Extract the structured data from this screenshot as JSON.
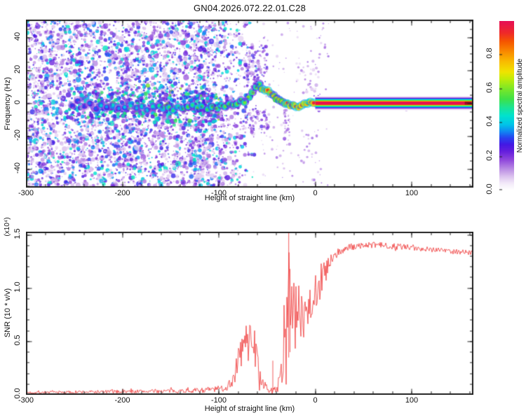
{
  "figure": {
    "title": "GN04.2026.072.22.01.C28",
    "bg": "#ffffff"
  },
  "chart_data": [
    {
      "type": "heatmap",
      "title": "GN04.2026.072.22.01.C28",
      "xlabel": "Height of straight line (km)",
      "ylabel": "Frequency (Hz)",
      "xlim": [
        -300,
        164
      ],
      "ylim": [
        -51,
        51
      ],
      "x_major_ticks": [
        -300,
        -200,
        -100,
        0,
        100
      ],
      "x_tick_labels": [
        "-300",
        "-200",
        "-100",
        "0",
        "100"
      ],
      "x_minor_step": 20,
      "y_major_ticks": [
        -40,
        -20,
        0,
        20,
        40
      ],
      "y_tick_labels": [
        "-40",
        "-20",
        "0",
        "20",
        "40"
      ],
      "y_minor_step": 5,
      "grid": false,
      "colorbar": {
        "label": "Normalized spectral amplitude",
        "ticks": [
          0.0,
          0.2,
          0.4,
          0.6,
          0.8
        ],
        "tick_labels": [
          "0.0",
          "0.2",
          "0.4",
          "0.6",
          "0.8"
        ],
        "range": [
          0,
          1
        ]
      },
      "colormap_stops": [
        [
          0.0,
          "#ffffff"
        ],
        [
          0.04,
          "#f3eaf9"
        ],
        [
          0.08,
          "#dcc3ef"
        ],
        [
          0.13,
          "#b686e3"
        ],
        [
          0.18,
          "#8f46dc"
        ],
        [
          0.23,
          "#641edd"
        ],
        [
          0.27,
          "#4318e4"
        ],
        [
          0.31,
          "#2744f0"
        ],
        [
          0.35,
          "#0f8df2"
        ],
        [
          0.39,
          "#00c6e8"
        ],
        [
          0.44,
          "#00e2cf"
        ],
        [
          0.49,
          "#1ce493"
        ],
        [
          0.54,
          "#3fe146"
        ],
        [
          0.6,
          "#7ce728"
        ],
        [
          0.66,
          "#c2ec08"
        ],
        [
          0.7,
          "#f0e400"
        ],
        [
          0.76,
          "#f9bc00"
        ],
        [
          0.82,
          "#f98a00"
        ],
        [
          0.88,
          "#f55600"
        ],
        [
          0.93,
          "#ef2a28"
        ],
        [
          1.0,
          "#e60f55"
        ]
      ],
      "noise": {
        "x0_km": -300,
        "fade_start_km": -125,
        "fade_end_km": -58,
        "n_dense": 3200,
        "n_small": 1700,
        "sparse": {
          "x0": -58,
          "x1": 14,
          "n": 150
        },
        "a_min": 0.06,
        "a_max": 0.46
      },
      "band_concentration": {
        "x0": -255,
        "x1": -100,
        "n": 520,
        "center_hz": -1,
        "f_sigma_hz": 8,
        "a_min": 0.15,
        "a_max": 0.55
      },
      "trace": [
        [
          -252,
          -1,
          0.3
        ],
        [
          -246,
          2,
          0.32
        ],
        [
          -240,
          -2,
          0.3
        ],
        [
          -234,
          0,
          0.34
        ],
        [
          -228,
          -3,
          0.32
        ],
        [
          -222,
          -1,
          0.42
        ],
        [
          -216,
          -2,
          0.36
        ],
        [
          -210,
          -1,
          0.45
        ],
        [
          -204,
          -3,
          0.36
        ],
        [
          -198,
          -2,
          0.4
        ],
        [
          -192,
          -1,
          0.46
        ],
        [
          -186,
          -3,
          0.42
        ],
        [
          -180,
          -2,
          0.44
        ],
        [
          -174,
          -4,
          0.42
        ],
        [
          -168,
          -2,
          0.46
        ],
        [
          -162,
          -1,
          0.5
        ],
        [
          -157,
          -3,
          0.48
        ],
        [
          -152,
          -2,
          0.52
        ],
        [
          -147,
          -4,
          0.5
        ],
        [
          -142,
          -2,
          0.48
        ],
        [
          -137,
          -3,
          0.52
        ],
        [
          -132,
          -2,
          0.55
        ],
        [
          -127,
          -1,
          0.5
        ],
        [
          -122,
          -3,
          0.55
        ],
        [
          -117,
          -2,
          0.52
        ],
        [
          -112,
          -4,
          0.52
        ],
        [
          -107,
          -2,
          0.56
        ],
        [
          -102,
          -3,
          0.58
        ],
        [
          -97,
          -1,
          0.55
        ],
        [
          -93,
          -2,
          0.58
        ],
        [
          -89,
          0,
          0.55
        ],
        [
          -85,
          -1,
          0.6
        ],
        [
          -81,
          0,
          0.58
        ],
        [
          -77,
          2,
          0.56
        ],
        [
          -73,
          1,
          0.6
        ],
        [
          -69,
          4,
          0.6
        ],
        [
          -65,
          7,
          0.62
        ],
        [
          -61,
          10,
          0.6
        ],
        [
          -58,
          12,
          0.58
        ],
        [
          -55,
          9,
          0.8
        ],
        [
          -52,
          8,
          0.95
        ],
        [
          -49,
          8,
          0.92
        ],
        [
          -46,
          6,
          0.8
        ],
        [
          -43,
          5,
          0.72
        ],
        [
          -40,
          3,
          0.7
        ],
        [
          -37,
          2,
          0.74
        ],
        [
          -34,
          1,
          0.7
        ],
        [
          -31,
          0,
          0.8
        ],
        [
          -29,
          0,
          0.95
        ],
        [
          -26,
          -1,
          0.9
        ],
        [
          -23,
          -1,
          0.78
        ],
        [
          -20,
          -2,
          0.92
        ],
        [
          -17,
          -2,
          0.95
        ],
        [
          -14,
          -1,
          0.9
        ],
        [
          -11,
          0,
          0.85
        ],
        [
          -8,
          0,
          0.95
        ],
        [
          -5,
          1,
          0.92
        ],
        [
          -2,
          0.5,
          0.96
        ]
      ],
      "plumes": [
        {
          "x0": -72,
          "x1": -50,
          "f0": 10,
          "f1": 36,
          "n": 95,
          "a0": 0.08,
          "a1": 0.3
        },
        {
          "x0": -75,
          "x1": -48,
          "f0": -18,
          "f1": -3,
          "n": 70,
          "a0": 0.08,
          "a1": 0.28
        },
        {
          "x0": -33,
          "x1": -26,
          "f0": -26,
          "f1": -4,
          "n": 30,
          "a0": 0.06,
          "a1": 0.2
        },
        {
          "x0": -20,
          "x1": 4,
          "f0": 5,
          "f1": 26,
          "n": 25,
          "a0": 0.05,
          "a1": 0.16
        },
        {
          "x0": -2,
          "x1": 8,
          "f0": -5,
          "f1": 6,
          "n": 18,
          "a0": 0.08,
          "a1": 0.25
        },
        {
          "x0": 78,
          "x1": 84,
          "f0": -4,
          "f1": 4,
          "n": 10,
          "a0": 0.08,
          "a1": 0.22
        },
        {
          "x0": 94,
          "x1": 100,
          "f0": -4,
          "f1": 4,
          "n": 10,
          "a0": 0.08,
          "a1": 0.22
        }
      ],
      "steady_band": {
        "x0": 0,
        "x1": 164,
        "center_hz": 0.3,
        "profile": [
          [
            0,
            1.0
          ],
          [
            0.9,
            0.97
          ],
          [
            1.2,
            0.75
          ],
          [
            1.5,
            0.58
          ],
          [
            1.9,
            0.48
          ],
          [
            2.3,
            0.4
          ],
          [
            2.7,
            0.3
          ],
          [
            3.1,
            0.18
          ],
          [
            3.6,
            0.08
          ],
          [
            4.2,
            0.02
          ],
          [
            4.8,
            0.0
          ]
        ],
        "dark_end": {
          "x0": 155,
          "x1": 162,
          "color": "#8f0b22"
        }
      }
    },
    {
      "type": "line",
      "xlabel": "Height of straight line (km)",
      "ylabel": "SNR (10 * v/v)",
      "y_scale_note": "(x10⁴)",
      "xlim": [
        -300,
        164
      ],
      "ylim": [
        0,
        1.53
      ],
      "x_major_ticks": [
        -300,
        -200,
        -100,
        0,
        100
      ],
      "x_tick_labels": [
        "-300",
        "-200",
        "-100",
        "0",
        "100"
      ],
      "x_minor_step": 20,
      "y_major_ticks": [
        0.0,
        0.5,
        1.0,
        1.5
      ],
      "y_tick_labels": [
        "0.0",
        "0.5",
        "1.0",
        "1.5"
      ],
      "y_minor_step": 0.1,
      "grid": false,
      "line_color": "#f04040",
      "series": [
        {
          "name": "SNR",
          "points_km_value_jitter": [
            [
              -300,
              0.02,
              0.012
            ],
            [
              -280,
              0.022,
              0.012
            ],
            [
              -260,
              0.022,
              0.014
            ],
            [
              -240,
              0.025,
              0.014
            ],
            [
              -220,
              0.026,
              0.016
            ],
            [
              -200,
              0.028,
              0.016
            ],
            [
              -180,
              0.03,
              0.018
            ],
            [
              -160,
              0.032,
              0.018
            ],
            [
              -145,
              0.034,
              0.02
            ],
            [
              -130,
              0.036,
              0.02
            ],
            [
              -118,
              0.04,
              0.024
            ],
            [
              -108,
              0.045,
              0.028
            ],
            [
              -100,
              0.05,
              0.03
            ],
            [
              -94,
              0.06,
              0.04
            ],
            [
              -89,
              0.09,
              0.05
            ],
            [
              -85,
              0.14,
              0.08
            ],
            [
              -81,
              0.25,
              0.13
            ],
            [
              -77,
              0.38,
              0.16
            ],
            [
              -73,
              0.48,
              0.14
            ],
            [
              -69,
              0.52,
              0.16
            ],
            [
              -66,
              0.55,
              0.14
            ],
            [
              -63,
              0.42,
              0.18
            ],
            [
              -60,
              0.28,
              0.14
            ],
            [
              -57,
              0.15,
              0.09
            ],
            [
              -54,
              0.08,
              0.05
            ],
            [
              -51,
              0.05,
              0.035
            ],
            [
              -47,
              0.035,
              0.025
            ],
            [
              -43,
              0.04,
              0.03
            ],
            [
              -39,
              0.07,
              0.05
            ],
            [
              -36,
              0.14,
              0.1
            ],
            [
              -33,
              0.35,
              0.28
            ],
            [
              -30,
              0.6,
              0.38
            ],
            [
              -28,
              0.85,
              0.45
            ],
            [
              -27,
              1.5,
              0.03
            ],
            [
              -26,
              0.75,
              0.38
            ],
            [
              -24,
              0.7,
              0.34
            ],
            [
              -22,
              0.68,
              0.32
            ],
            [
              -20,
              0.72,
              0.32
            ],
            [
              -18,
              0.74,
              0.3
            ],
            [
              -16,
              0.7,
              0.28
            ],
            [
              -14,
              0.78,
              0.3
            ],
            [
              -12,
              0.76,
              0.28
            ],
            [
              -10,
              0.8,
              0.26
            ],
            [
              -8,
              0.83,
              0.26
            ],
            [
              -6,
              0.8,
              0.24
            ],
            [
              -4,
              0.88,
              0.22
            ],
            [
              -2,
              0.86,
              0.24
            ],
            [
              0,
              0.93,
              0.2
            ],
            [
              3,
              0.99,
              0.18
            ],
            [
              6,
              1.04,
              0.16
            ],
            [
              9,
              1.1,
              0.14
            ],
            [
              12,
              1.16,
              0.11
            ],
            [
              15,
              1.21,
              0.09
            ],
            [
              18,
              1.26,
              0.07
            ],
            [
              22,
              1.3,
              0.055
            ],
            [
              26,
              1.34,
              0.045
            ],
            [
              30,
              1.36,
              0.04
            ],
            [
              36,
              1.38,
              0.032
            ],
            [
              44,
              1.39,
              0.03
            ],
            [
              52,
              1.4,
              0.028
            ],
            [
              60,
              1.4,
              0.028
            ],
            [
              70,
              1.4,
              0.026
            ],
            [
              80,
              1.39,
              0.03
            ],
            [
              86,
              1.38,
              0.05
            ],
            [
              92,
              1.38,
              0.03
            ],
            [
              98,
              1.37,
              0.045
            ],
            [
              104,
              1.37,
              0.028
            ],
            [
              112,
              1.37,
              0.026
            ],
            [
              120,
              1.36,
              0.026
            ],
            [
              128,
              1.36,
              0.026
            ],
            [
              136,
              1.35,
              0.026
            ],
            [
              144,
              1.34,
              0.026
            ],
            [
              152,
              1.34,
              0.026
            ],
            [
              158,
              1.33,
              0.026
            ],
            [
              164,
              1.33,
              0.026
            ]
          ],
          "spikes": [
            {
              "km": -27.5,
              "v0": 0.35,
              "v1": 1.52
            },
            {
              "km": -26.2,
              "v0": 0.4,
              "v1": 1.18
            },
            {
              "km": -44.0,
              "v0": 0.03,
              "v1": 0.32
            }
          ]
        }
      ]
    }
  ]
}
